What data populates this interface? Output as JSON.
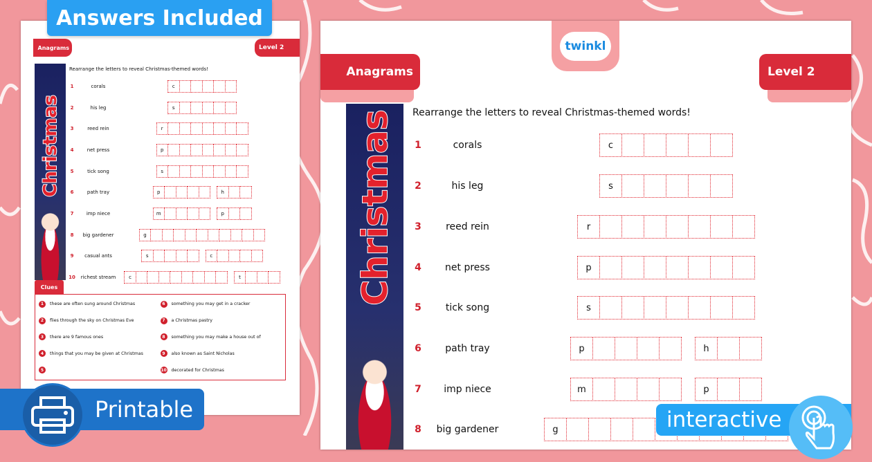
{
  "badges": {
    "answers": "Answers Included",
    "printable": "Printable",
    "interactive": "interactive",
    "printable_icon": "printer-icon",
    "interactive_icon": "touch-hand-icon"
  },
  "sheet": {
    "logo": "twinkl",
    "title_tab": "Anagrams",
    "level_tab": "Level 2",
    "banner": "Christmas",
    "instruction": "Rearrange the letters to reveal Christmas-themed words!",
    "clues_title": "Clues",
    "colors": {
      "accent": "#d92b3a",
      "background": "#f1979c",
      "badge_blue": "#2aa0f2"
    },
    "rows": [
      {
        "num": "1",
        "word": "corals",
        "groups": [
          {
            "first": "c",
            "length": 6
          }
        ]
      },
      {
        "num": "2",
        "word": "his leg",
        "groups": [
          {
            "first": "s",
            "length": 6
          }
        ]
      },
      {
        "num": "3",
        "word": "reed rein",
        "groups": [
          {
            "first": "r",
            "length": 8
          }
        ]
      },
      {
        "num": "4",
        "word": "net press",
        "groups": [
          {
            "first": "p",
            "length": 8
          }
        ]
      },
      {
        "num": "5",
        "word": "tick song",
        "groups": [
          {
            "first": "s",
            "length": 8
          }
        ]
      },
      {
        "num": "6",
        "word": "path tray",
        "groups": [
          {
            "first": "p",
            "length": 5
          },
          {
            "first": "h",
            "length": 3
          }
        ]
      },
      {
        "num": "7",
        "word": "imp niece",
        "groups": [
          {
            "first": "m",
            "length": 5
          },
          {
            "first": "p",
            "length": 3
          }
        ]
      },
      {
        "num": "8",
        "word": "big gardener",
        "groups": [
          {
            "first": "g",
            "length": 11
          }
        ]
      },
      {
        "num": "9",
        "word": "casual ants",
        "groups": [
          {
            "first": "s",
            "length": 5
          },
          {
            "first": "c",
            "length": 5
          }
        ]
      },
      {
        "num": "10",
        "word": "richest stream",
        "groups": [
          {
            "first": "c",
            "length": 9
          },
          {
            "first": "t",
            "length": 4
          }
        ]
      }
    ],
    "clues": [
      {
        "num": "1",
        "text": "these are often sung around Christmas"
      },
      {
        "num": "2",
        "text": "flies through the sky on Christmas Eve"
      },
      {
        "num": "3",
        "text": "there are 9 famous ones"
      },
      {
        "num": "4",
        "text": "things that you may be given at Christmas"
      },
      {
        "num": "5",
        "text": ""
      },
      {
        "num": "6",
        "text": "something you may get in a cracker"
      },
      {
        "num": "7",
        "text": "a Christmas pastry"
      },
      {
        "num": "8",
        "text": "something you may make a house out of"
      },
      {
        "num": "9",
        "text": "also known as Saint Nicholas"
      },
      {
        "num": "10",
        "text": "decorated for Christmas"
      }
    ]
  }
}
